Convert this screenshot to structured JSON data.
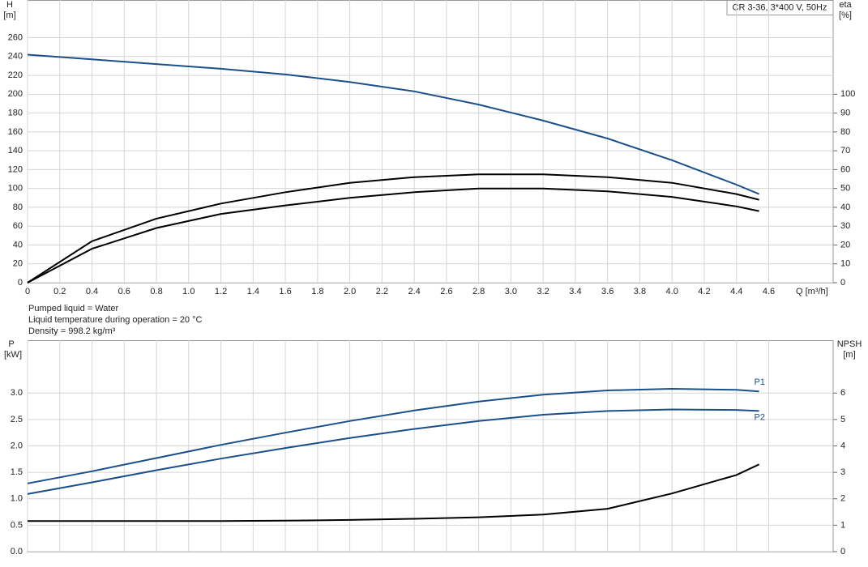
{
  "chart_data": [
    {
      "type": "line",
      "title": "CR 3-36, 3*400 V, 50Hz",
      "ylabel": "H",
      "yunit": "[m]",
      "y2label": "eta",
      "y2unit": "[%]",
      "xlabel": "Q [m³/h]",
      "x": [
        0,
        0.4,
        0.8,
        1.2,
        1.6,
        2.0,
        2.4,
        2.8,
        3.2,
        3.6,
        4.0,
        4.4,
        4.54
      ],
      "series": [
        {
          "color": "#1c4f8a",
          "values": [
            242,
            237,
            232,
            227,
            221,
            213,
            203,
            189,
            172,
            153,
            130,
            104,
            94
          ]
        },
        {
          "color": "#000000",
          "axis": "y2",
          "values": [
            0,
            22,
            34,
            42,
            48,
            53,
            56,
            57.5,
            57.5,
            56,
            53,
            47,
            44
          ]
        },
        {
          "color": "#000000",
          "axis": "y2",
          "values": [
            0,
            18,
            29,
            36.5,
            41,
            45,
            48,
            50,
            50,
            48.5,
            45.5,
            40.5,
            38
          ]
        }
      ],
      "xlim": [
        0,
        5.0
      ],
      "xticks": [
        0,
        0.2,
        0.4,
        0.6,
        0.8,
        {
          "value": 1,
          "label": "1.0"
        },
        1.2,
        1.4,
        1.6,
        1.8,
        {
          "value": 2,
          "label": "2.0"
        },
        2.2,
        2.4,
        2.6,
        2.8,
        {
          "value": 3,
          "label": "3.0"
        },
        3.2,
        3.4,
        3.6,
        3.8,
        {
          "value": 4,
          "label": "4.0"
        },
        4.2,
        4.4,
        4.6
      ],
      "ylim": [
        0,
        300
      ],
      "yticks": [
        0,
        20,
        40,
        60,
        80,
        100,
        120,
        140,
        160,
        180,
        200,
        220,
        240,
        260
      ],
      "y2lim": [
        0,
        150
      ],
      "y2ticks": [
        0,
        10,
        20,
        30,
        40,
        50,
        60,
        70,
        80,
        90,
        100
      ],
      "grid": true
    },
    {
      "type": "line",
      "ylabel": "P",
      "yunit": "[kW]",
      "y2label": "NPSH",
      "y2unit": "[m]",
      "x": [
        0,
        0.4,
        0.8,
        1.2,
        1.6,
        2.0,
        2.4,
        2.8,
        3.2,
        3.6,
        4.0,
        4.4,
        4.54
      ],
      "series": [
        {
          "name": "P1",
          "color": "#1c4f8a",
          "values": [
            1.29,
            1.52,
            1.77,
            2.02,
            2.25,
            2.47,
            2.67,
            2.84,
            2.97,
            3.05,
            3.08,
            3.06,
            3.03
          ]
        },
        {
          "name": "P2",
          "color": "#1c4f8a",
          "values": [
            1.09,
            1.31,
            1.54,
            1.76,
            1.96,
            2.15,
            2.32,
            2.47,
            2.59,
            2.66,
            2.69,
            2.68,
            2.66
          ]
        },
        {
          "color": "#000000",
          "axis": "y2",
          "values": [
            1.16,
            1.16,
            1.16,
            1.16,
            1.17,
            1.2,
            1.24,
            1.3,
            1.4,
            1.62,
            2.2,
            2.9,
            3.3
          ]
        }
      ],
      "xlim": [
        0,
        5.0
      ],
      "xticks": [
        0,
        0.2,
        0.4,
        0.6,
        0.8,
        1,
        1.2,
        1.4,
        1.6,
        1.8,
        2,
        2.2,
        2.4,
        2.6,
        2.8,
        3,
        3.2,
        3.4,
        3.6,
        3.8,
        4,
        4.2,
        4.4,
        4.6
      ],
      "ylim": [
        0,
        4.0
      ],
      "yticks": [
        {
          "value": 0,
          "label": "0.0"
        },
        0.5,
        {
          "value": 1,
          "label": "1.0"
        },
        1.5,
        {
          "value": 2,
          "label": "2.0"
        },
        2.5,
        {
          "value": 3,
          "label": "3.0"
        }
      ],
      "y2lim": [
        0,
        8
      ],
      "y2ticks": [
        0,
        1,
        2,
        3,
        4,
        5,
        6
      ],
      "grid": true
    }
  ],
  "notes": [
    "Pumped liquid = Water",
    "Liquid temperature during operation = 20 °C",
    "Density = 998.2 kg/m³"
  ]
}
